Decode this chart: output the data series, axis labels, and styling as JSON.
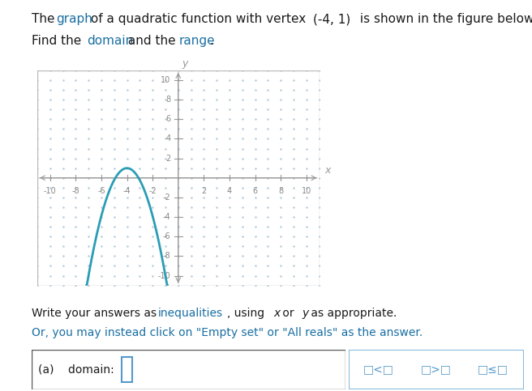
{
  "vertex_x": -4,
  "vertex_y": 1,
  "parabola_color": "#2a9db5",
  "axis_color": "#999999",
  "grid_dot_color": "#b0c8d8",
  "xlim": [
    -11,
    11
  ],
  "ylim": [
    -11,
    11
  ],
  "xticks": [
    -10,
    -8,
    -6,
    -4,
    -2,
    2,
    4,
    6,
    8,
    10
  ],
  "yticks": [
    -10,
    -8,
    -6,
    -4,
    -2,
    2,
    4,
    6,
    8,
    10
  ],
  "tick_label_color": "#888888",
  "xlabel": "x",
  "ylabel": "y",
  "background_color": "#ffffff",
  "graph_bg": "#ffffff",
  "border_color": "#bbbbbb",
  "text_color": "#1a1a1a",
  "link_color": "#1a6fa3",
  "line1_plain1": "The ",
  "line1_link1": "graph",
  "line1_plain2": " of a quadratic function with vertex ",
  "line1_math": "(-4, 1)",
  "line1_plain3": " is shown in the figure below.",
  "line2_plain1": "Find the ",
  "line2_link1": "domain",
  "line2_plain2": " and the ",
  "line2_link2": "range",
  "line2_plain3": ".",
  "bot_plain1": "Write your answers as ",
  "bot_link1": "inequalities",
  "bot_plain2": ", using ",
  "bot_italic1": "x",
  "bot_plain3": " or ",
  "bot_italic2": "y",
  "bot_plain4": " as appropriate.",
  "bot_line2": "Or, you may instead click on \"Empty set\" or \"All reals\" as the answer.",
  "ans_label": "(a)    domain:",
  "box_symbols": [
    "□<□",
    "□>□",
    "□≤□"
  ]
}
